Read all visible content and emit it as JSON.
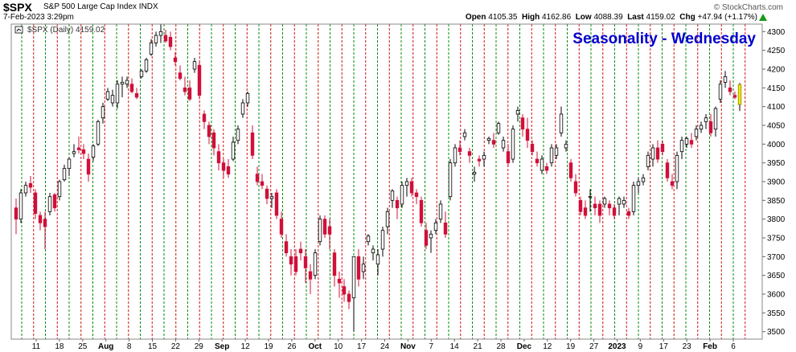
{
  "header": {
    "symbol": "$SPX",
    "description": "S&P 500 Large Cap Index  INDX",
    "brand": "© StockCharts.com",
    "datetime": "7-Feb-2023 3:29pm",
    "open_label": "Open",
    "open": "4105.35",
    "high_label": "High",
    "high": "4162.86",
    "low_label": "Low",
    "low": "4088.39",
    "last_label": "Last",
    "last": "4159.02",
    "chg_label": "Chg",
    "chg": "+47.94 (+1.17%)"
  },
  "chart_data": {
    "type": "candlestick",
    "title": "Seasonality - Wednesday",
    "legend": "$SPX (Daily) 4159.02",
    "ylim": [
      3480,
      4320
    ],
    "yticks": [
      3500,
      3550,
      3600,
      3650,
      3700,
      3750,
      3800,
      3850,
      3900,
      3950,
      4000,
      4050,
      4100,
      4150,
      4200,
      4250,
      4300
    ],
    "xlabels": [
      {
        "label": "11",
        "bold": false
      },
      {
        "label": "18",
        "bold": false
      },
      {
        "label": "25",
        "bold": false
      },
      {
        "label": "Aug",
        "bold": true
      },
      {
        "label": "8",
        "bold": false
      },
      {
        "label": "15",
        "bold": false
      },
      {
        "label": "22",
        "bold": false
      },
      {
        "label": "29",
        "bold": false
      },
      {
        "label": "Sep",
        "bold": true
      },
      {
        "label": "12",
        "bold": false
      },
      {
        "label": "19",
        "bold": false
      },
      {
        "label": "26",
        "bold": false
      },
      {
        "label": "Oct",
        "bold": true
      },
      {
        "label": "10",
        "bold": false
      },
      {
        "label": "17",
        "bold": false
      },
      {
        "label": "24",
        "bold": false
      },
      {
        "label": "Nov",
        "bold": true
      },
      {
        "label": "7",
        "bold": false
      },
      {
        "label": "14",
        "bold": false
      },
      {
        "label": "21",
        "bold": false
      },
      {
        "label": "28",
        "bold": false
      },
      {
        "label": "Dec",
        "bold": true
      },
      {
        "label": "12",
        "bold": false
      },
      {
        "label": "19",
        "bold": false
      },
      {
        "label": "27",
        "bold": false
      },
      {
        "label": "2023",
        "bold": true
      },
      {
        "label": "9",
        "bold": false
      },
      {
        "label": "17",
        "bold": false
      },
      {
        "label": "23",
        "bold": false
      },
      {
        "label": "Feb",
        "bold": true
      },
      {
        "label": "6",
        "bold": false
      }
    ],
    "grid": true,
    "colors": {
      "up": "#000000",
      "down": "#d0103a",
      "current": "#f2e600",
      "wednesday_line": "#d01010",
      "other_line": "#0a8a0a",
      "title": "#0000cc",
      "background": "#ffffff"
    },
    "candles": [
      [
        3830,
        3855,
        3760,
        3800
      ],
      [
        3800,
        3880,
        3790,
        3870
      ],
      [
        3870,
        3900,
        3860,
        3890
      ],
      [
        3895,
        3915,
        3870,
        3885
      ],
      [
        3870,
        3880,
        3800,
        3815
      ],
      [
        3810,
        3820,
        3770,
        3790
      ],
      [
        3800,
        3820,
        3720,
        3780
      ],
      [
        3820,
        3870,
        3810,
        3860
      ],
      [
        3865,
        3870,
        3820,
        3830
      ],
      [
        3860,
        3905,
        3850,
        3900
      ],
      [
        3905,
        3945,
        3900,
        3935
      ],
      [
        3935,
        3965,
        3915,
        3960
      ],
      [
        3975,
        4000,
        3965,
        3980
      ],
      [
        3990,
        4020,
        3975,
        3985
      ],
      [
        3985,
        4000,
        3960,
        3975
      ],
      [
        3960,
        3975,
        3900,
        3920
      ],
      [
        3965,
        4000,
        3955,
        3995
      ],
      [
        4000,
        4065,
        3995,
        4060
      ],
      [
        4070,
        4110,
        4055,
        4100
      ],
      [
        4120,
        4150,
        4115,
        4140
      ],
      [
        4110,
        4145,
        4100,
        4130
      ],
      [
        4110,
        4170,
        4095,
        4160
      ],
      [
        4160,
        4180,
        4125,
        4165
      ],
      [
        4160,
        4180,
        4150,
        4170
      ],
      [
        4160,
        4175,
        4135,
        4140
      ],
      [
        4135,
        4150,
        4120,
        4125
      ],
      [
        4180,
        4200,
        4175,
        4195
      ],
      [
        4195,
        4230,
        4190,
        4225
      ],
      [
        4240,
        4280,
        4235,
        4270
      ],
      [
        4270,
        4300,
        4260,
        4290
      ],
      [
        4290,
        4320,
        4270,
        4300
      ],
      [
        4290,
        4305,
        4270,
        4275
      ],
      [
        4285,
        4300,
        4250,
        4260
      ],
      [
        4230,
        4245,
        4210,
        4220
      ],
      [
        4190,
        4210,
        4170,
        4175
      ],
      [
        4150,
        4180,
        4130,
        4140
      ],
      [
        4150,
        4170,
        4115,
        4120
      ],
      [
        4200,
        4230,
        4190,
        4220
      ],
      [
        4210,
        4220,
        4120,
        4130
      ],
      [
        4080,
        4090,
        4040,
        4060
      ],
      [
        4050,
        4060,
        4000,
        4020
      ],
      [
        4030,
        4040,
        3970,
        3990
      ],
      [
        3980,
        4000,
        3930,
        3950
      ],
      [
        3950,
        3960,
        3910,
        3930
      ],
      [
        3940,
        3960,
        3910,
        3920
      ],
      [
        3960,
        4020,
        3955,
        4005
      ],
      [
        4010,
        4050,
        4000,
        4040
      ],
      [
        4080,
        4120,
        4070,
        4110
      ],
      [
        4110,
        4140,
        4100,
        4135
      ],
      [
        4030,
        4050,
        3960,
        3970
      ],
      [
        3920,
        3940,
        3890,
        3900
      ],
      [
        3900,
        3920,
        3880,
        3890
      ],
      [
        3880,
        3890,
        3840,
        3855
      ],
      [
        3855,
        3870,
        3830,
        3860
      ],
      [
        3870,
        3880,
        3800,
        3810
      ],
      [
        3800,
        3820,
        3750,
        3760
      ],
      [
        3740,
        3760,
        3700,
        3710
      ],
      [
        3700,
        3720,
        3650,
        3680
      ],
      [
        3700,
        3720,
        3650,
        3660
      ],
      [
        3720,
        3740,
        3690,
        3710
      ],
      [
        3700,
        3720,
        3630,
        3670
      ],
      [
        3660,
        3680,
        3600,
        3640
      ],
      [
        3650,
        3720,
        3640,
        3710
      ],
      [
        3740,
        3810,
        3730,
        3800
      ],
      [
        3800,
        3810,
        3750,
        3760
      ],
      [
        3780,
        3800,
        3720,
        3760
      ],
      [
        3710,
        3720,
        3620,
        3650
      ],
      [
        3640,
        3660,
        3590,
        3630
      ],
      [
        3620,
        3640,
        3580,
        3600
      ],
      [
        3600,
        3610,
        3560,
        3580
      ],
      [
        3590,
        3700,
        3500,
        3700
      ],
      [
        3700,
        3720,
        3620,
        3640
      ],
      [
        3660,
        3700,
        3640,
        3680
      ],
      [
        3740,
        3760,
        3730,
        3755
      ],
      [
        3710,
        3730,
        3690,
        3720
      ],
      [
        3680,
        3720,
        3650,
        3705
      ],
      [
        3720,
        3780,
        3700,
        3770
      ],
      [
        3780,
        3830,
        3760,
        3820
      ],
      [
        3850,
        3880,
        3830,
        3875
      ],
      [
        3850,
        3860,
        3800,
        3830
      ],
      [
        3840,
        3900,
        3830,
        3890
      ],
      [
        3890,
        3910,
        3860,
        3900
      ],
      [
        3900,
        3910,
        3860,
        3870
      ],
      [
        3870,
        3880,
        3840,
        3860
      ],
      [
        3850,
        3860,
        3780,
        3790
      ],
      [
        3770,
        3790,
        3720,
        3730
      ],
      [
        3750,
        3770,
        3710,
        3760
      ],
      [
        3770,
        3800,
        3760,
        3790
      ],
      [
        3800,
        3850,
        3790,
        3840
      ],
      [
        3790,
        3820,
        3750,
        3760
      ],
      [
        3860,
        3960,
        3850,
        3950
      ],
      [
        3950,
        4000,
        3940,
        3990
      ],
      [
        3990,
        4010,
        3970,
        3980
      ],
      [
        4020,
        4040,
        4010,
        4030
      ],
      [
        3980,
        3990,
        3950,
        3970
      ],
      [
        3920,
        3940,
        3900,
        3925
      ],
      [
        3960,
        3970,
        3940,
        3955
      ],
      [
        3960,
        3980,
        3940,
        3970
      ],
      [
        4010,
        4020,
        4000,
        4015
      ],
      [
        4010,
        4030,
        3990,
        4000
      ],
      [
        4030,
        4060,
        4025,
        4055
      ],
      [
        3990,
        4020,
        3980,
        4010
      ],
      [
        3980,
        4000,
        3940,
        3950
      ],
      [
        3960,
        4050,
        3950,
        4040
      ],
      [
        4080,
        4100,
        4060,
        4090
      ],
      [
        4070,
        4080,
        4020,
        4040
      ],
      [
        4040,
        4070,
        3990,
        4010
      ],
      [
        4000,
        4010,
        3970,
        3980
      ],
      [
        3960,
        3980,
        3940,
        3950
      ],
      [
        3930,
        3970,
        3920,
        3960
      ],
      [
        3940,
        3950,
        3920,
        3930
      ],
      [
        3950,
        4000,
        3940,
        3990
      ],
      [
        3970,
        4000,
        3960,
        3990
      ],
      [
        4030,
        4100,
        4020,
        4080
      ],
      [
        3990,
        4010,
        3980,
        4000
      ],
      [
        3950,
        3960,
        3900,
        3910
      ],
      [
        3900,
        3920,
        3860,
        3870
      ],
      [
        3850,
        3860,
        3810,
        3820
      ],
      [
        3830,
        3850,
        3800,
        3810
      ],
      [
        3860,
        3880,
        3820,
        3860
      ],
      [
        3840,
        3860,
        3810,
        3830
      ],
      [
        3840,
        3850,
        3790,
        3810
      ],
      [
        3840,
        3860,
        3830,
        3855
      ],
      [
        3840,
        3850,
        3810,
        3830
      ],
      [
        3830,
        3840,
        3800,
        3810
      ],
      [
        3840,
        3860,
        3810,
        3855
      ],
      [
        3840,
        3860,
        3830,
        3850
      ],
      [
        3820,
        3830,
        3800,
        3810
      ],
      [
        3820,
        3900,
        3810,
        3890
      ],
      [
        3890,
        3910,
        3870,
        3900
      ],
      [
        3900,
        3920,
        3890,
        3910
      ],
      [
        3940,
        3980,
        3930,
        3970
      ],
      [
        3960,
        4000,
        3940,
        3990
      ],
      [
        3990,
        4010,
        3950,
        3960
      ],
      [
        4000,
        4010,
        3970,
        3980
      ],
      [
        3950,
        3960,
        3900,
        3910
      ],
      [
        3900,
        3920,
        3880,
        3890
      ],
      [
        3900,
        3980,
        3880,
        3970
      ],
      [
        3980,
        4020,
        3960,
        4010
      ],
      [
        4000,
        4020,
        3990,
        4015
      ],
      [
        4010,
        4030,
        3990,
        4000
      ],
      [
        4020,
        4050,
        4010,
        4040
      ],
      [
        4040,
        4060,
        4030,
        4050
      ],
      [
        4060,
        4080,
        4040,
        4070
      ],
      [
        4060,
        4080,
        4020,
        4030
      ],
      [
        4040,
        4100,
        4020,
        4095
      ],
      [
        4120,
        4170,
        4110,
        4160
      ],
      [
        4165,
        4195,
        4150,
        4180
      ],
      [
        4150,
        4170,
        4130,
        4140
      ],
      [
        4130,
        4140,
        4120,
        4125
      ],
      [
        4105.35,
        4162.86,
        4088.39,
        4159.02
      ]
    ]
  }
}
